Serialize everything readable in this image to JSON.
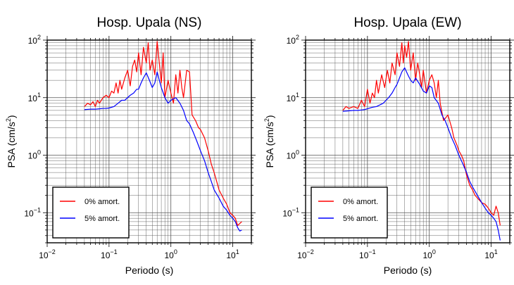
{
  "chart_data": [
    {
      "type": "line",
      "title": "Hosp. Upala (NS)",
      "xlabel": "Periodo (s)",
      "ylabel_main": "PSA (cm/s",
      "ylabel_sup": "2",
      "ylabel_close": ")",
      "xscale": "log",
      "yscale": "log",
      "xlim": [
        0.01,
        20
      ],
      "ylim": [
        0.03,
        100
      ],
      "grid": true,
      "legend_position": "bottom-left",
      "xticks": [
        {
          "value": 0.01,
          "base": "10",
          "exp": "−2"
        },
        {
          "value": 0.1,
          "base": "10",
          "exp": "−1"
        },
        {
          "value": 1,
          "base": "10",
          "exp": "0"
        },
        {
          "value": 10,
          "base": "10",
          "exp": "1"
        }
      ],
      "yticks": [
        {
          "value": 0.1,
          "base": "10",
          "exp": "−1"
        },
        {
          "value": 1,
          "base": "10",
          "exp": "0"
        },
        {
          "value": 10,
          "base": "10",
          "exp": "1"
        },
        {
          "value": 100,
          "base": "10",
          "exp": "2"
        }
      ],
      "series": [
        {
          "name": "0% amort.",
          "color": "#ff0000",
          "x": [
            0.04,
            0.045,
            0.05,
            0.055,
            0.06,
            0.065,
            0.07,
            0.08,
            0.09,
            0.1,
            0.11,
            0.12,
            0.13,
            0.14,
            0.15,
            0.16,
            0.18,
            0.2,
            0.22,
            0.24,
            0.26,
            0.28,
            0.3,
            0.33,
            0.36,
            0.4,
            0.43,
            0.46,
            0.5,
            0.55,
            0.6,
            0.65,
            0.7,
            0.75,
            0.8,
            0.9,
            1.0,
            1.1,
            1.2,
            1.3,
            1.4,
            1.5,
            1.6,
            1.8,
            2.0,
            2.2,
            2.5,
            2.8,
            3.0,
            3.5,
            4.0,
            4.5,
            5.0,
            5.5,
            6.0,
            7.0,
            8.0,
            9.0,
            10.0,
            11.0,
            12.0,
            13.0,
            14.0
          ],
          "y": [
            7,
            8,
            7.5,
            8.5,
            7,
            9,
            8,
            10,
            11,
            10,
            13,
            12,
            18,
            12,
            20,
            14,
            22,
            30,
            16,
            35,
            45,
            28,
            60,
            25,
            75,
            40,
            90,
            30,
            45,
            25,
            95,
            40,
            18,
            60,
            10,
            20,
            12,
            8,
            25,
            12,
            30,
            15,
            10,
            30,
            28,
            5,
            4,
            3,
            2.8,
            2.0,
            1.2,
            0.7,
            0.5,
            0.35,
            0.25,
            0.18,
            0.14,
            0.1,
            0.09,
            0.08,
            0.06,
            0.065,
            0.07
          ]
        },
        {
          "name": "5% amort.",
          "color": "#0000ff",
          "x": [
            0.04,
            0.05,
            0.06,
            0.07,
            0.08,
            0.09,
            0.1,
            0.12,
            0.14,
            0.16,
            0.18,
            0.2,
            0.22,
            0.25,
            0.28,
            0.3,
            0.33,
            0.36,
            0.4,
            0.45,
            0.5,
            0.55,
            0.6,
            0.65,
            0.7,
            0.8,
            0.9,
            1.0,
            1.2,
            1.4,
            1.6,
            1.8,
            2.0,
            2.3,
            2.6,
            3.0,
            3.5,
            4.0,
            4.5,
            5.0,
            6.0,
            7.0,
            8.0,
            9.0,
            10.0,
            11.0,
            12.0,
            13.0,
            14.0
          ],
          "y": [
            6.2,
            6.3,
            6.3,
            6.4,
            6.5,
            6.5,
            6.6,
            7,
            8,
            9,
            9,
            10,
            11,
            12,
            14,
            14,
            18,
            22,
            27,
            20,
            15,
            18,
            28,
            20,
            15,
            10,
            8,
            9,
            10,
            8,
            6,
            4,
            3.5,
            2.5,
            1.8,
            1.2,
            0.8,
            0.5,
            0.35,
            0.25,
            0.18,
            0.13,
            0.11,
            0.09,
            0.08,
            0.07,
            0.055,
            0.048,
            0.05
          ]
        }
      ]
    },
    {
      "type": "line",
      "title": "Hosp. Upala (EW)",
      "xlabel": "Periodo (s)",
      "ylabel_main": "PSA (cm/s",
      "ylabel_sup": "2",
      "ylabel_close": ")",
      "xscale": "log",
      "yscale": "log",
      "xlim": [
        0.01,
        20
      ],
      "ylim": [
        0.03,
        100
      ],
      "grid": true,
      "legend_position": "bottom-left",
      "xticks": [
        {
          "value": 0.01,
          "base": "10",
          "exp": "−2"
        },
        {
          "value": 0.1,
          "base": "10",
          "exp": "−1"
        },
        {
          "value": 1,
          "base": "10",
          "exp": "0"
        },
        {
          "value": 10,
          "base": "10",
          "exp": "1"
        }
      ],
      "yticks": [
        {
          "value": 0.1,
          "base": "10",
          "exp": "−1"
        },
        {
          "value": 1,
          "base": "10",
          "exp": "0"
        },
        {
          "value": 10,
          "base": "10",
          "exp": "1"
        },
        {
          "value": 100,
          "base": "10",
          "exp": "2"
        }
      ],
      "series": [
        {
          "name": "0% amort.",
          "color": "#ff0000",
          "x": [
            0.04,
            0.045,
            0.05,
            0.06,
            0.07,
            0.08,
            0.09,
            0.1,
            0.11,
            0.12,
            0.13,
            0.14,
            0.15,
            0.17,
            0.19,
            0.21,
            0.23,
            0.25,
            0.28,
            0.3,
            0.33,
            0.36,
            0.38,
            0.4,
            0.43,
            0.46,
            0.5,
            0.55,
            0.6,
            0.65,
            0.7,
            0.75,
            0.8,
            0.9,
            1.0,
            1.1,
            1.2,
            1.3,
            1.4,
            1.5,
            1.7,
            2.0,
            2.3,
            2.5,
            2.8,
            3.0,
            3.3,
            3.6,
            4.0,
            4.5,
            5.0,
            5.5,
            6.0,
            7.0,
            8.0,
            9.0,
            10.0,
            11.0,
            12.0,
            13.0,
            14.0
          ],
          "y": [
            6,
            7,
            6.5,
            7,
            6.5,
            9,
            7,
            14,
            8,
            12,
            10,
            20,
            12,
            25,
            15,
            30,
            18,
            40,
            25,
            60,
            35,
            90,
            40,
            80,
            50,
            95,
            30,
            60,
            20,
            40,
            25,
            15,
            30,
            12,
            20,
            25,
            18,
            10,
            20,
            8,
            4,
            5,
            3,
            2,
            1.5,
            1.2,
            1.0,
            0.8,
            0.45,
            0.3,
            0.25,
            0.2,
            0.18,
            0.15,
            0.14,
            0.12,
            0.1,
            0.09,
            0.13,
            0.1,
            0.06
          ]
        },
        {
          "name": "5% amort.",
          "color": "#0000ff",
          "x": [
            0.04,
            0.05,
            0.06,
            0.07,
            0.08,
            0.09,
            0.1,
            0.12,
            0.14,
            0.16,
            0.18,
            0.2,
            0.22,
            0.25,
            0.28,
            0.3,
            0.33,
            0.36,
            0.4,
            0.45,
            0.5,
            0.55,
            0.6,
            0.7,
            0.8,
            0.9,
            1.0,
            1.1,
            1.2,
            1.4,
            1.6,
            1.8,
            2.0,
            2.3,
            2.6,
            3.0,
            3.5,
            4.0,
            4.5,
            5.0,
            6.0,
            7.0,
            8.0,
            9.0,
            10.0,
            11.0,
            12.0,
            13.0,
            14.0
          ],
          "y": [
            5.8,
            5.9,
            6,
            6,
            6.1,
            6.2,
            6.4,
            6.8,
            7,
            7.5,
            8,
            9,
            10,
            12,
            15,
            17,
            22,
            28,
            33,
            25,
            20,
            18,
            22,
            17,
            13,
            12,
            16,
            15,
            10,
            8,
            5,
            4,
            3,
            2,
            1.5,
            1.0,
            0.7,
            0.5,
            0.35,
            0.28,
            0.2,
            0.15,
            0.12,
            0.1,
            0.09,
            0.08,
            0.07,
            0.05,
            0.033
          ]
        }
      ]
    }
  ]
}
